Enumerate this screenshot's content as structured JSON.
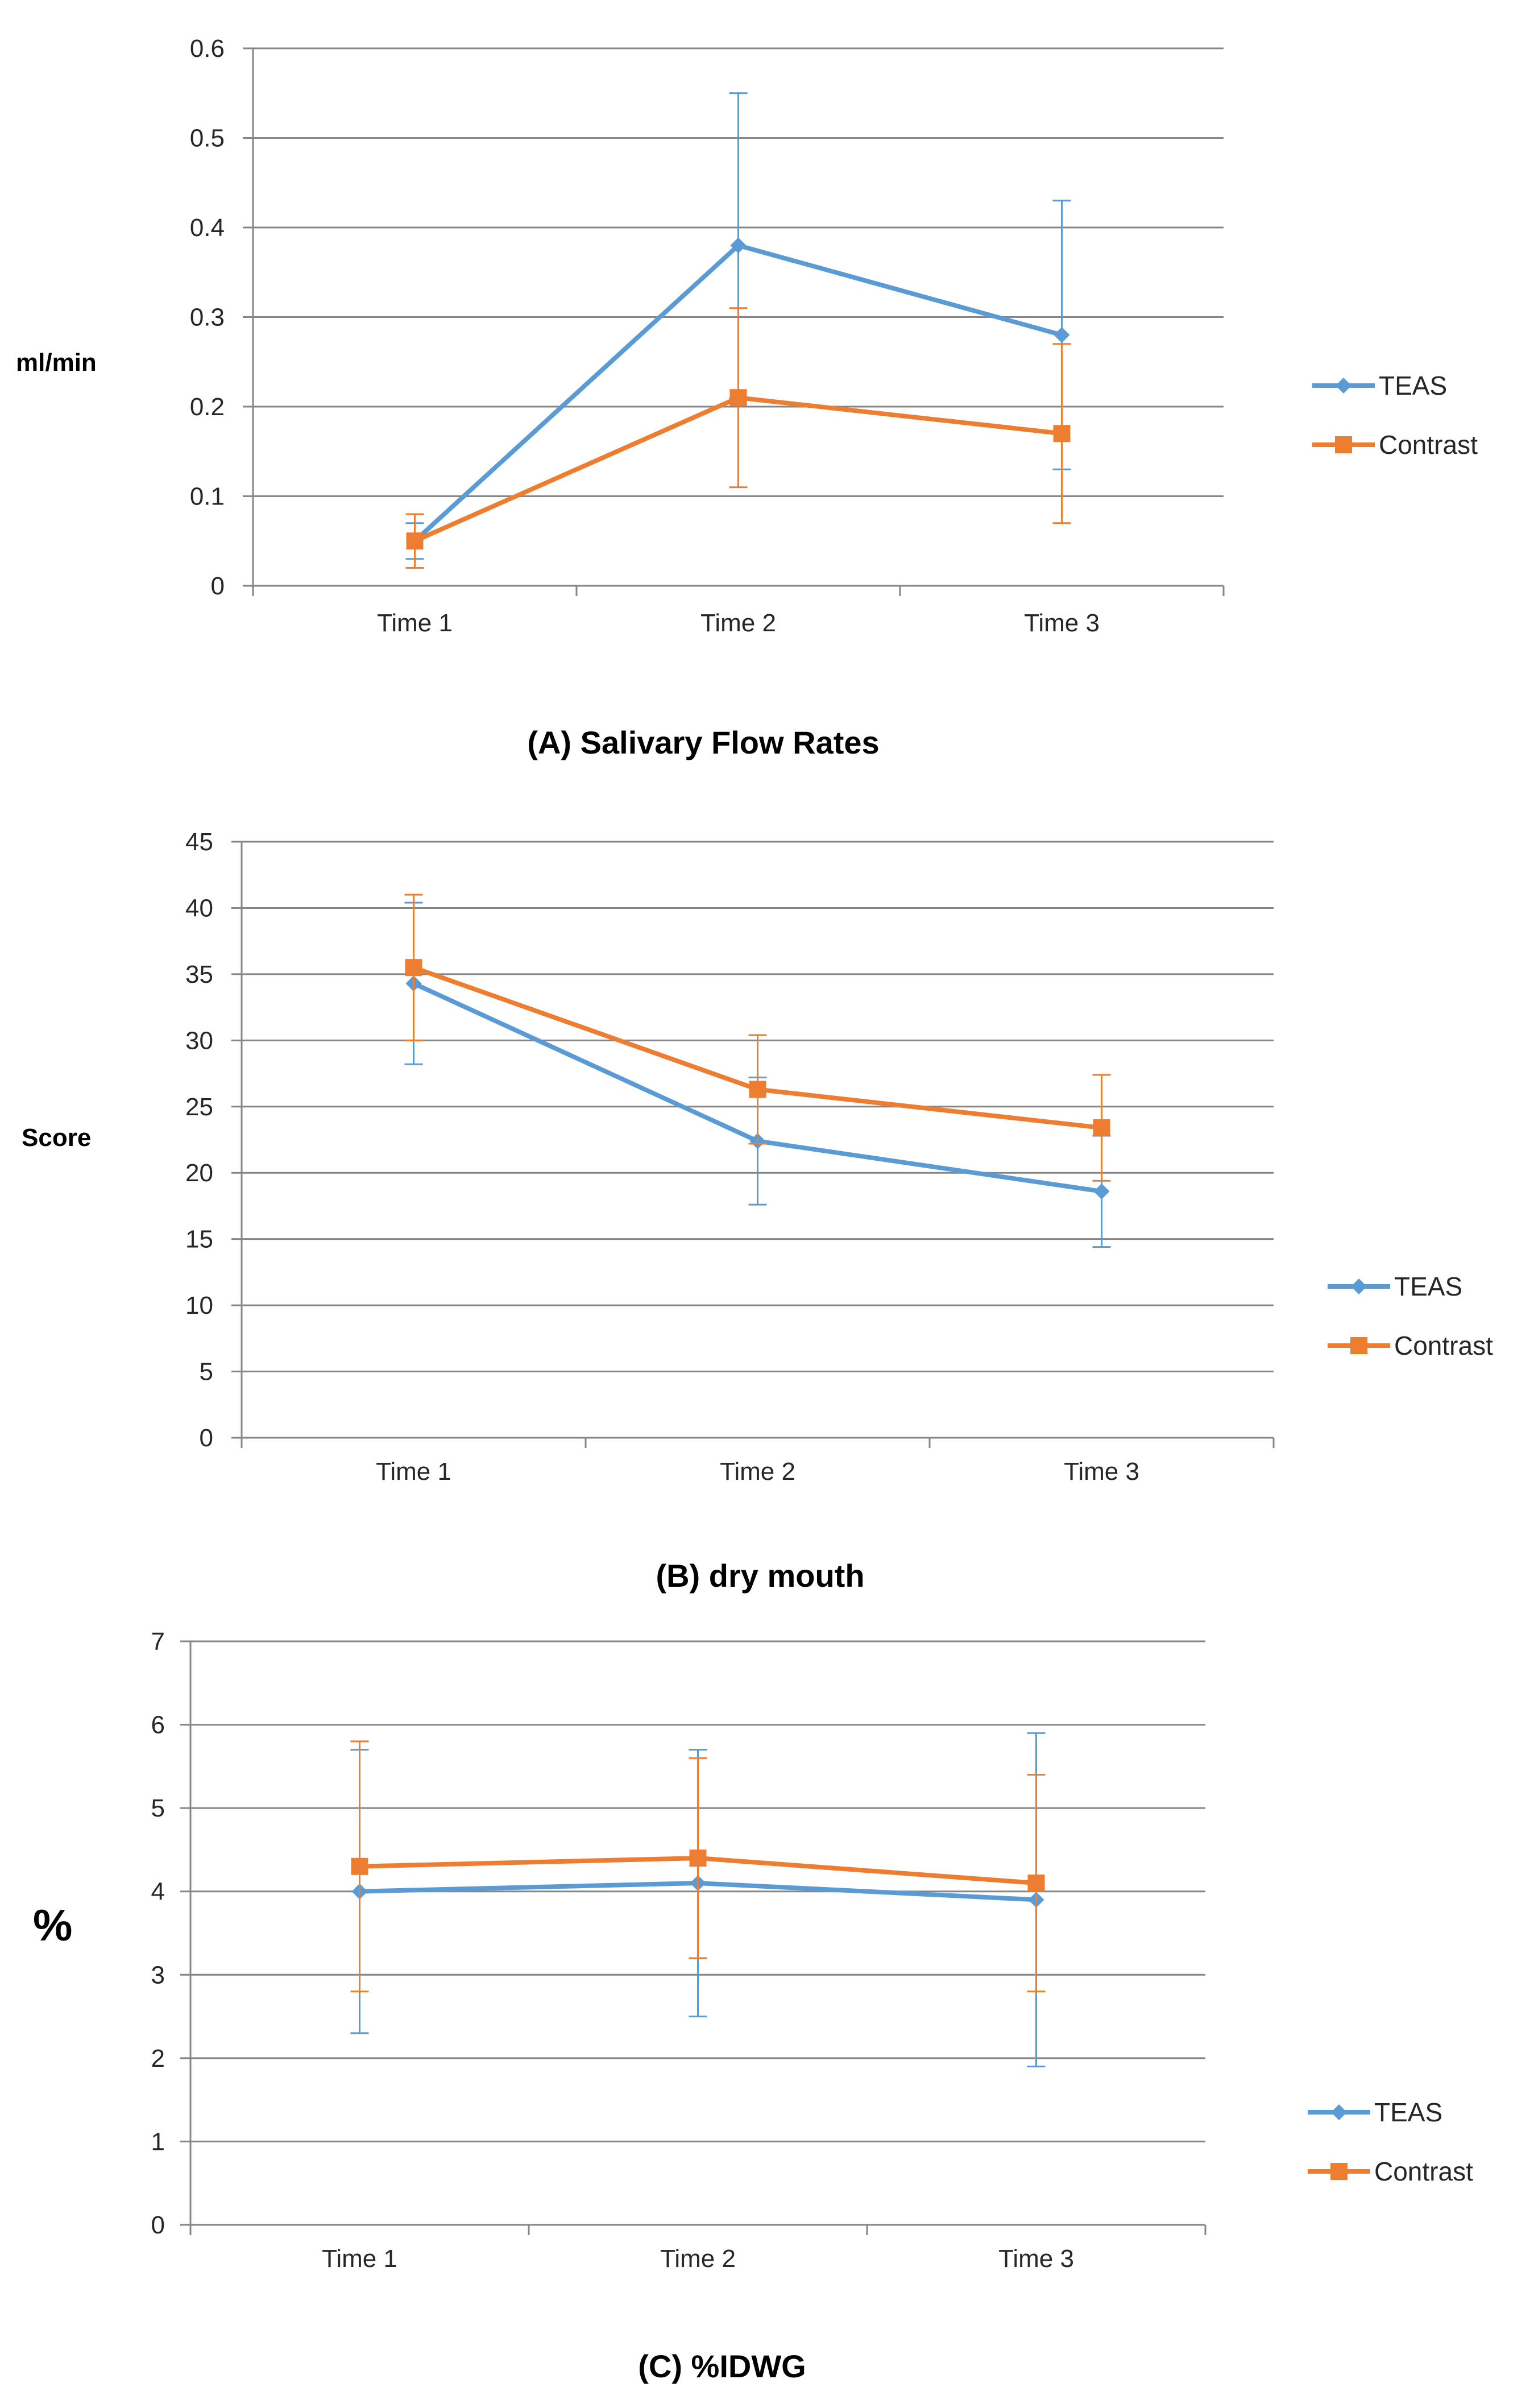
{
  "colors": {
    "teas": "#5B9BD5",
    "contrast": "#ED7D31",
    "grid": "#868686",
    "axis": "#868686"
  },
  "chart_data": [
    {
      "type": "line",
      "title": "(A)  Salivary Flow Rates",
      "ylabel": "ml/min",
      "xlabel": "",
      "categories": [
        "Time 1",
        "Time 2",
        "Time 3"
      ],
      "ylim": [
        0,
        0.6
      ],
      "yticks": [
        "0",
        "0.1",
        "0.2",
        "0.3",
        "0.4",
        "0.5",
        "0.6"
      ],
      "yticks_values": [
        0,
        0.1,
        0.2,
        0.3,
        0.4,
        0.5,
        0.6
      ],
      "legend_position": "right",
      "series": [
        {
          "name": "TEAS",
          "marker": "diamond",
          "values": [
            0.05,
            0.38,
            0.28
          ],
          "err_low": [
            0.03,
            0.21,
            0.13
          ],
          "err_high": [
            0.07,
            0.55,
            0.43
          ]
        },
        {
          "name": "Contrast",
          "marker": "square",
          "values": [
            0.05,
            0.21,
            0.17
          ],
          "err_low": [
            0.02,
            0.11,
            0.07
          ],
          "err_high": [
            0.08,
            0.31,
            0.27
          ]
        }
      ]
    },
    {
      "type": "line",
      "title": "(B) dry mouth",
      "ylabel": "Score",
      "xlabel": "",
      "categories": [
        "Time 1",
        "Time 2",
        "Time 3"
      ],
      "ylim": [
        0,
        45
      ],
      "yticks": [
        "0",
        "5",
        "10",
        "15",
        "20",
        "25",
        "30",
        "35",
        "40",
        "45"
      ],
      "yticks_values": [
        0,
        5,
        10,
        15,
        20,
        25,
        30,
        35,
        40,
        45
      ],
      "legend_position": "right",
      "series": [
        {
          "name": "TEAS",
          "marker": "diamond",
          "values": [
            34.3,
            22.4,
            18.6
          ],
          "err_low": [
            28.2,
            17.6,
            14.4
          ],
          "err_high": [
            40.4,
            27.2,
            22.8
          ]
        },
        {
          "name": "Contrast",
          "marker": "square",
          "values": [
            35.5,
            26.3,
            23.4
          ],
          "err_low": [
            30.0,
            22.2,
            19.4
          ],
          "err_high": [
            41.0,
            30.4,
            27.4
          ]
        }
      ]
    },
    {
      "type": "line",
      "title": "(C) %IDWG",
      "ylabel": "%",
      "xlabel": "",
      "categories": [
        "Time 1",
        "Time 2",
        "Time 3"
      ],
      "ylim": [
        0,
        7
      ],
      "yticks": [
        "0",
        "1",
        "2",
        "3",
        "4",
        "5",
        "6",
        "7"
      ],
      "yticks_values": [
        0,
        1,
        2,
        3,
        4,
        5,
        6,
        7
      ],
      "legend_position": "right",
      "series": [
        {
          "name": "TEAS",
          "marker": "diamond",
          "values": [
            4.0,
            4.1,
            3.9
          ],
          "err_low": [
            2.3,
            2.5,
            1.9
          ],
          "err_high": [
            5.7,
            5.7,
            5.9
          ]
        },
        {
          "name": "Contrast",
          "marker": "square",
          "values": [
            4.3,
            4.4,
            4.1
          ],
          "err_low": [
            2.8,
            3.2,
            2.8
          ],
          "err_high": [
            5.8,
            5.6,
            5.4
          ]
        }
      ]
    }
  ]
}
